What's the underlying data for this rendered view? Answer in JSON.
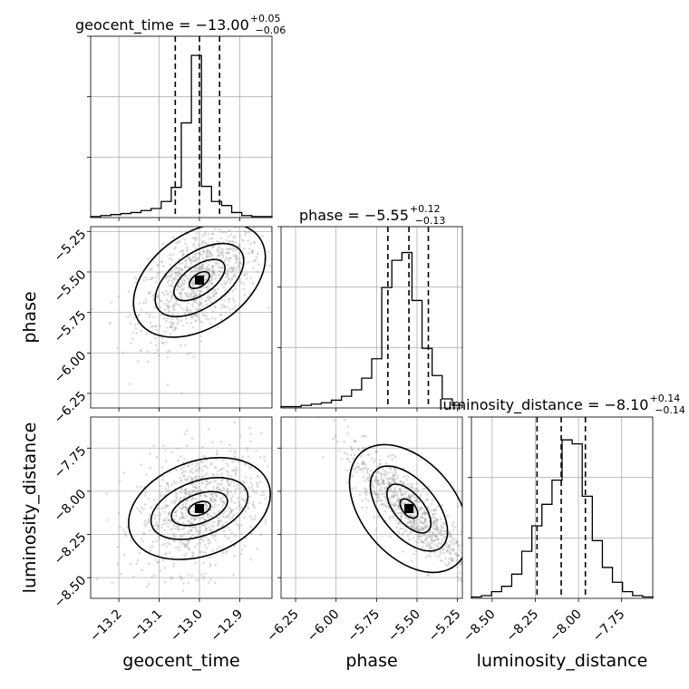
{
  "colors": {
    "line": "#000000",
    "grid": "#b0b0b0",
    "points": "#9a9a9a"
  },
  "chart_data": {
    "type": "corner",
    "parameters": [
      "geocent_time",
      "phase",
      "luminosity_distance"
    ],
    "titles": [
      {
        "text": "geocent_time = −13.00",
        "sup": "+0.05",
        "sub": "−0.06"
      },
      {
        "text": "phase = −5.55",
        "sup": "+0.12",
        "sub": "−0.13"
      },
      {
        "text": "luminosity_distance = −8.10",
        "sup": "+0.14",
        "sub": "−0.14"
      }
    ],
    "ranges": [
      [
        -13.27,
        -12.82
      ],
      [
        -6.34,
        -5.22
      ],
      [
        -8.62,
        -7.57
      ]
    ],
    "ticks": [
      {
        "values": [
          -13.2,
          -13.1,
          -13.0,
          -12.9
        ],
        "labels": [
          "−13.2",
          "−13.1",
          "−13.0",
          "−12.9"
        ]
      },
      {
        "values": [
          -6.25,
          -6.0,
          -5.75,
          -5.5,
          -5.25
        ],
        "labels": [
          "−6.25",
          "−6.00",
          "−5.75",
          "−5.50",
          "−5.25"
        ]
      },
      {
        "values": [
          -8.5,
          -8.25,
          -8.0,
          -7.75
        ],
        "labels": [
          "−8.50",
          "−8.25",
          "−8.00",
          "−7.75"
        ]
      }
    ],
    "quantiles": [
      [
        -13.06,
        -13.0,
        -12.95
      ],
      [
        -5.68,
        -5.55,
        -5.43
      ],
      [
        -8.24,
        -8.1,
        -7.96
      ]
    ],
    "histograms": [
      {
        "counts": [
          1,
          2,
          3,
          4,
          5,
          7,
          9,
          16,
          30,
          94,
          161,
          31,
          16,
          12,
          5,
          2,
          1,
          1
        ]
      },
      {
        "counts": [
          1,
          1,
          2,
          3,
          4,
          6,
          9,
          14,
          23,
          38,
          93,
          114,
          120,
          83,
          46,
          25,
          7,
          2
        ]
      },
      {
        "counts": [
          1,
          2,
          5,
          9,
          18,
          35,
          54,
          70,
          88,
          118,
          115,
          76,
          43,
          23,
          12,
          5,
          2,
          1
        ]
      }
    ],
    "hist_ylim": [
      [
        0,
        180
      ],
      [
        0,
        140
      ],
      [
        0,
        135
      ]
    ],
    "grid": true,
    "xlabels": [
      "geocent_time",
      "phase",
      "luminosity_distance"
    ],
    "ylabels": [
      "phase",
      "luminosity_distance"
    ]
  }
}
